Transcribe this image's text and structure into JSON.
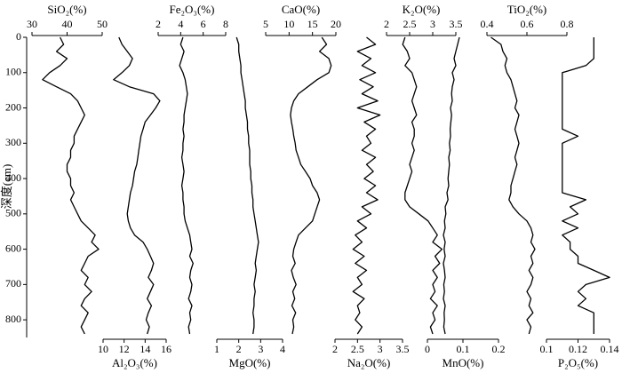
{
  "chart_data": {
    "type": "line",
    "orientation": "vertical",
    "ylabel": "深度(cm)",
    "ylim": [
      0,
      850
    ],
    "yticks": [
      0,
      100,
      200,
      300,
      400,
      500,
      600,
      700,
      800
    ],
    "depth": [
      0,
      20,
      40,
      60,
      80,
      100,
      120,
      140,
      160,
      180,
      200,
      220,
      240,
      260,
      280,
      300,
      320,
      340,
      360,
      380,
      400,
      420,
      440,
      460,
      480,
      500,
      520,
      540,
      560,
      580,
      600,
      620,
      640,
      660,
      680,
      700,
      720,
      740,
      760,
      780,
      800,
      820,
      840
    ],
    "series": [
      {
        "name": "SiO₂(%)",
        "color": "#000000",
        "axis": "top",
        "xlim": [
          30,
          50
        ],
        "xticks": [
          30,
          40,
          50
        ],
        "values": [
          38,
          39,
          37,
          40,
          38,
          35,
          33,
          37,
          41,
          43,
          44,
          45,
          44,
          43,
          42,
          42,
          41,
          41,
          40,
          40,
          41,
          41,
          42,
          41,
          42,
          43,
          44,
          46,
          48,
          47,
          49,
          46,
          45,
          44,
          46,
          45,
          47,
          45,
          44,
          46,
          45,
          44,
          45
        ]
      },
      {
        "name": "Al₂O₃(%)",
        "color": "#000000",
        "axis": "bottom",
        "xlim": [
          10,
          16
        ],
        "xticks": [
          10,
          12,
          14,
          16
        ],
        "values": [
          11.5,
          11.8,
          12.3,
          12.8,
          12.5,
          11.8,
          11,
          12.5,
          14.8,
          15.4,
          15,
          14.5,
          14,
          13.8,
          13.6,
          13.5,
          13.4,
          13.3,
          13.2,
          13,
          12.9,
          12.8,
          12.6,
          12.5,
          12.4,
          12.3,
          12.4,
          12.6,
          13,
          13.8,
          14.2,
          14.5,
          14.8,
          14.6,
          14.3,
          14.8,
          14.5,
          14.2,
          14.6,
          14.3,
          14.1,
          14.4,
          14.2
        ]
      },
      {
        "name": "Fe₂O₃(%)",
        "color": "#000000",
        "axis": "top",
        "xlim": [
          2,
          8
        ],
        "xticks": [
          2,
          4,
          6,
          8
        ],
        "values": [
          4.2,
          4.0,
          4.3,
          4.1,
          3.9,
          4.2,
          4.4,
          4.5,
          4.6,
          4.5,
          4.4,
          4.3,
          4.3,
          4.2,
          4.3,
          4.2,
          4.2,
          4.1,
          4.2,
          4.3,
          4.2,
          4.1,
          4.2,
          4.2,
          4.3,
          4.3,
          4.4,
          4.6,
          4.8,
          4.9,
          5.0,
          4.8,
          5.1,
          4.9,
          4.8,
          5.0,
          4.9,
          4.7,
          5.0,
          4.8,
          4.9,
          4.7,
          4.8
        ]
      },
      {
        "name": "MgO(%)",
        "color": "#000000",
        "axis": "bottom",
        "xlim": [
          1,
          4
        ],
        "xticks": [
          1,
          2,
          3,
          4
        ],
        "values": [
          1.9,
          2.0,
          2.0,
          2.05,
          2.1,
          2.1,
          2.15,
          2.2,
          2.25,
          2.3,
          2.3,
          2.35,
          2.4,
          2.4,
          2.45,
          2.45,
          2.5,
          2.5,
          2.5,
          2.55,
          2.55,
          2.6,
          2.6,
          2.65,
          2.65,
          2.7,
          2.75,
          2.8,
          2.85,
          2.9,
          2.85,
          2.8,
          2.75,
          2.8,
          2.75,
          2.7,
          2.75,
          2.7,
          2.7,
          2.65,
          2.7,
          2.7,
          2.65
        ]
      },
      {
        "name": "CaO(%)",
        "color": "#000000",
        "axis": "top",
        "xlim": [
          5,
          20
        ],
        "xticks": [
          5,
          10,
          15,
          20
        ],
        "values": [
          17,
          18,
          16.5,
          18.5,
          19,
          18.5,
          16,
          14,
          12,
          11,
          10.5,
          10.3,
          10.5,
          10.8,
          11,
          11.3,
          11.5,
          12,
          12.5,
          13.5,
          14.5,
          15,
          16,
          16.5,
          16,
          15.5,
          15,
          13.5,
          12,
          11.5,
          11,
          10.8,
          11.3,
          10.5,
          10.9,
          11.5,
          10.8,
          11.2,
          10.6,
          11.4,
          10.8,
          11,
          10.7
        ]
      },
      {
        "name": "Na₂O(%)",
        "color": "#000000",
        "axis": "bottom",
        "xlim": [
          2,
          3.5
        ],
        "xticks": [
          2,
          2.5,
          3,
          3.5
        ],
        "values": [
          2.7,
          2.9,
          2.5,
          2.8,
          2.6,
          2.9,
          2.55,
          2.85,
          2.6,
          2.95,
          2.5,
          3.0,
          2.65,
          2.9,
          2.7,
          2.8,
          2.6,
          2.9,
          2.7,
          2.85,
          2.65,
          2.9,
          2.7,
          2.95,
          2.6,
          2.8,
          2.5,
          2.7,
          2.45,
          2.6,
          2.4,
          2.65,
          2.45,
          2.7,
          2.5,
          2.6,
          2.4,
          2.65,
          2.5,
          2.55,
          2.45,
          2.6,
          2.5
        ]
      },
      {
        "name": "K₂O(%)",
        "color": "#000000",
        "axis": "top",
        "xlim": [
          2,
          3.5
        ],
        "xticks": [
          2,
          2.5,
          3,
          3.5
        ],
        "values": [
          2.4,
          2.35,
          2.45,
          2.5,
          2.4,
          2.55,
          2.6,
          2.65,
          2.6,
          2.55,
          2.6,
          2.65,
          2.55,
          2.6,
          2.6,
          2.55,
          2.6,
          2.55,
          2.5,
          2.55,
          2.5,
          2.45,
          2.4,
          2.4,
          2.5,
          2.7,
          2.9,
          3.0,
          3.1,
          3.0,
          3.2,
          3.05,
          3.15,
          3.0,
          3.1,
          3.0,
          3.05,
          2.95,
          3.1,
          3.0,
          3.05,
          2.95,
          3.0
        ]
      },
      {
        "name": "MnO(%)",
        "color": "#000000",
        "axis": "bottom",
        "xlim": [
          0,
          0.2
        ],
        "xticks": [
          0,
          0.1,
          0.2
        ],
        "values": [
          0.09,
          0.085,
          0.08,
          0.075,
          0.08,
          0.07,
          0.075,
          0.07,
          0.068,
          0.07,
          0.065,
          0.068,
          0.066,
          0.064,
          0.065,
          0.062,
          0.064,
          0.06,
          0.062,
          0.06,
          0.058,
          0.06,
          0.055,
          0.058,
          0.05,
          0.052,
          0.048,
          0.05,
          0.045,
          0.05,
          0.047,
          0.05,
          0.045,
          0.048,
          0.05,
          0.046,
          0.048,
          0.045,
          0.05,
          0.047,
          0.048,
          0.046,
          0.05
        ]
      },
      {
        "name": "TiO₂(%)",
        "color": "#000000",
        "axis": "top",
        "xlim": [
          0.4,
          0.8
        ],
        "xticks": [
          0.4,
          0.6,
          0.8
        ],
        "values": [
          0.42,
          0.47,
          0.48,
          0.5,
          0.49,
          0.5,
          0.52,
          0.53,
          0.54,
          0.55,
          0.54,
          0.56,
          0.55,
          0.54,
          0.55,
          0.56,
          0.55,
          0.54,
          0.55,
          0.54,
          0.53,
          0.52,
          0.52,
          0.51,
          0.53,
          0.56,
          0.6,
          0.62,
          0.63,
          0.62,
          0.64,
          0.62,
          0.63,
          0.61,
          0.63,
          0.62,
          0.6,
          0.62,
          0.61,
          0.63,
          0.6,
          0.62,
          0.61
        ]
      },
      {
        "name": "P₂O₅(%)",
        "color": "#000000",
        "axis": "bottom",
        "xlim": [
          0.1,
          0.14
        ],
        "xticks": [
          0.1,
          0.12,
          0.14
        ],
        "values": [
          0.13,
          0.13,
          0.13,
          0.13,
          0.125,
          0.11,
          0.11,
          0.11,
          0.11,
          0.11,
          0.11,
          0.11,
          0.11,
          0.11,
          0.12,
          0.11,
          0.11,
          0.11,
          0.11,
          0.11,
          0.11,
          0.11,
          0.11,
          0.125,
          0.115,
          0.12,
          0.11,
          0.12,
          0.11,
          0.115,
          0.115,
          0.12,
          0.12,
          0.13,
          0.14,
          0.125,
          0.12,
          0.125,
          0.12,
          0.13,
          0.13,
          0.13,
          0.13
        ]
      }
    ]
  }
}
